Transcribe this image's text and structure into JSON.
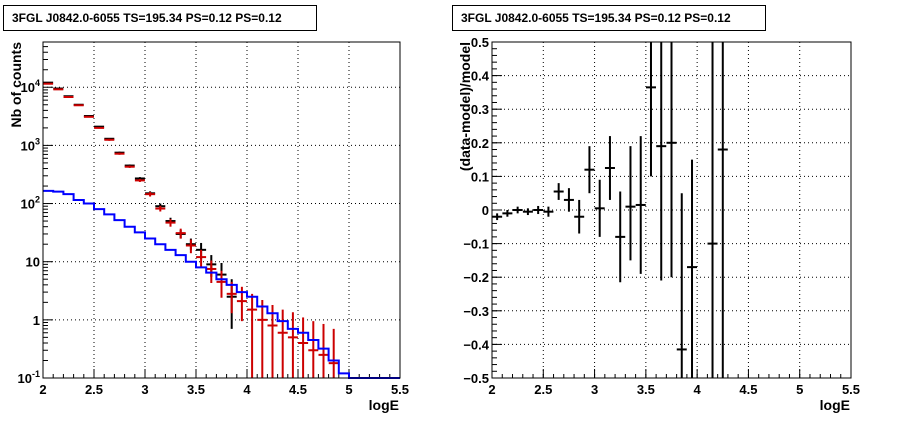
{
  "chart_data": [
    {
      "type": "scatter",
      "title": "3FGL J0842.0-6055 TS=195.34 PS=0.12 PS=0.12",
      "xlabel": "logE",
      "ylabel": "Nb of counts",
      "xlim": [
        2,
        5.5
      ],
      "ylim": [
        0.1,
        60000
      ],
      "ylog": true,
      "grid": true,
      "xticks": [
        "2",
        "2.5",
        "3",
        "3.5",
        "4",
        "4.5",
        "5",
        "5.5"
      ],
      "yticks": [
        {
          "v": 0.1,
          "label": "10",
          "sup": "-1"
        },
        {
          "v": 1,
          "label": "1",
          "sup": ""
        },
        {
          "v": 10,
          "label": "10",
          "sup": ""
        },
        {
          "v": 100,
          "label": "10",
          "sup": "2"
        },
        {
          "v": 1000,
          "label": "10",
          "sup": "3"
        },
        {
          "v": 10000,
          "label": "10",
          "sup": "4"
        }
      ],
      "series": [
        {
          "color": "#000000",
          "style": "errorbar",
          "x": [
            2.05,
            2.15,
            2.25,
            2.35,
            2.45,
            2.55,
            2.65,
            2.75,
            2.85,
            2.95,
            3.05,
            3.15,
            3.25,
            3.35,
            3.45,
            3.55,
            3.65,
            3.75,
            3.85
          ],
          "y": [
            12000,
            9500,
            7000,
            5000,
            3200,
            2100,
            1300,
            750,
            450,
            270,
            150,
            90,
            50,
            30,
            20,
            16,
            9,
            6,
            2.5
          ],
          "ylow": [
            11800,
            9300,
            6850,
            4900,
            3120,
            2050,
            1260,
            720,
            430,
            255,
            138,
            80,
            43,
            25,
            16,
            11,
            5.5,
            3,
            0.7
          ],
          "yhigh": [
            12200,
            9700,
            7150,
            5100,
            3280,
            2150,
            1340,
            780,
            470,
            285,
            162,
            100,
            57,
            35,
            25,
            21,
            13,
            9.5,
            5
          ]
        },
        {
          "color": "#cc0000",
          "style": "errorbar",
          "x": [
            2.05,
            2.15,
            2.25,
            2.35,
            2.45,
            2.55,
            2.65,
            2.75,
            2.85,
            2.95,
            3.05,
            3.15,
            3.25,
            3.35,
            3.45,
            3.55,
            3.65,
            3.75,
            3.85,
            3.95,
            4.05,
            4.15,
            4.25,
            4.35,
            4.45,
            4.55,
            4.65,
            4.75,
            4.85
          ],
          "y": [
            11500,
            9200,
            6800,
            4900,
            3100,
            2000,
            1250,
            720,
            430,
            250,
            145,
            82,
            47,
            31,
            19,
            12,
            7.5,
            4.5,
            2.8,
            2.1,
            1.5,
            1.0,
            0.8,
            0.6,
            0.5,
            0.4,
            0.3,
            0.25,
            0.18
          ],
          "ylow": [
            11400,
            9100,
            6700,
            4800,
            3050,
            1950,
            1200,
            690,
            410,
            235,
            132,
            73,
            40,
            25,
            14,
            8,
            4.3,
            2.4,
            1.3,
            0.95,
            0.1,
            0.1,
            0.1,
            0.1,
            0.1,
            0.1,
            0.1,
            0.1,
            0.1
          ],
          "yhigh": [
            11600,
            9300,
            6900,
            5000,
            3150,
            2050,
            1300,
            750,
            450,
            265,
            158,
            91,
            54,
            37,
            24,
            16,
            10.5,
            7,
            4.5,
            3.7,
            2.8,
            2.2,
            1.8,
            1.5,
            1.35,
            1.1,
            0.95,
            0.85,
            0.7
          ]
        },
        {
          "color": "#0000ff",
          "style": "step",
          "edges": [
            2.0,
            2.1,
            2.2,
            2.3,
            2.4,
            2.5,
            2.6,
            2.7,
            2.8,
            2.9,
            3.0,
            3.1,
            3.2,
            3.3,
            3.4,
            3.5,
            3.6,
            3.7,
            3.8,
            3.9,
            4.0,
            4.1,
            4.2,
            4.3,
            4.4,
            4.5,
            4.6,
            4.7,
            4.8,
            4.9,
            5.0,
            5.5
          ],
          "values": [
            165,
            160,
            145,
            115,
            100,
            80,
            65,
            52,
            40,
            32,
            25,
            20,
            16,
            13,
            10,
            8.0,
            6.5,
            5.0,
            4.0,
            3.0,
            2.5,
            1.7,
            1.3,
            0.95,
            0.7,
            0.6,
            0.45,
            0.32,
            0.2,
            0.12,
            0.1
          ]
        }
      ]
    },
    {
      "type": "scatter",
      "title": "3FGL J0842.0-6055 TS=195.34 PS=0.12 PS=0.12",
      "xlabel": "logE",
      "ylabel": "(data-model)/model",
      "xlim": [
        2,
        5.5
      ],
      "ylim": [
        -0.5,
        0.5
      ],
      "grid": true,
      "xticks": [
        "2",
        "2.5",
        "3",
        "3.5",
        "4",
        "4.5",
        "5",
        "5.5"
      ],
      "yticks": [
        "-0.5",
        "-0.4",
        "-0.3",
        "-0.2",
        "-0.1",
        "0",
        "0.1",
        "0.2",
        "0.3",
        "0.4",
        "0.5"
      ],
      "series": [
        {
          "color": "#000000",
          "style": "errorbar",
          "x": [
            2.05,
            2.15,
            2.25,
            2.35,
            2.45,
            2.55,
            2.65,
            2.75,
            2.85,
            2.95,
            3.05,
            3.15,
            3.25,
            3.35,
            3.45,
            3.55,
            3.65,
            3.75,
            3.85,
            3.95,
            4.15,
            4.25
          ],
          "y": [
            -0.02,
            -0.01,
            0.0,
            -0.005,
            0.0,
            -0.005,
            0.055,
            0.03,
            -0.02,
            0.12,
            0.005,
            0.125,
            -0.08,
            0.01,
            0.015,
            0.365,
            0.19,
            0.2,
            -0.415,
            -0.17,
            -0.1,
            0.18
          ],
          "ylow": [
            -0.03,
            -0.02,
            -0.01,
            -0.015,
            -0.012,
            -0.02,
            0.03,
            -0.005,
            -0.07,
            0.05,
            -0.08,
            0.03,
            -0.215,
            -0.15,
            -0.19,
            0.1,
            -0.21,
            -0.2,
            -0.5,
            -0.5,
            -0.5,
            -0.5
          ],
          "yhigh": [
            -0.01,
            0.0,
            0.01,
            0.005,
            0.012,
            0.01,
            0.08,
            0.065,
            0.03,
            0.19,
            0.09,
            0.22,
            0.055,
            0.19,
            0.22,
            0.5,
            0.5,
            0.5,
            0.05,
            0.15,
            0.5,
            0.5
          ]
        }
      ]
    }
  ]
}
